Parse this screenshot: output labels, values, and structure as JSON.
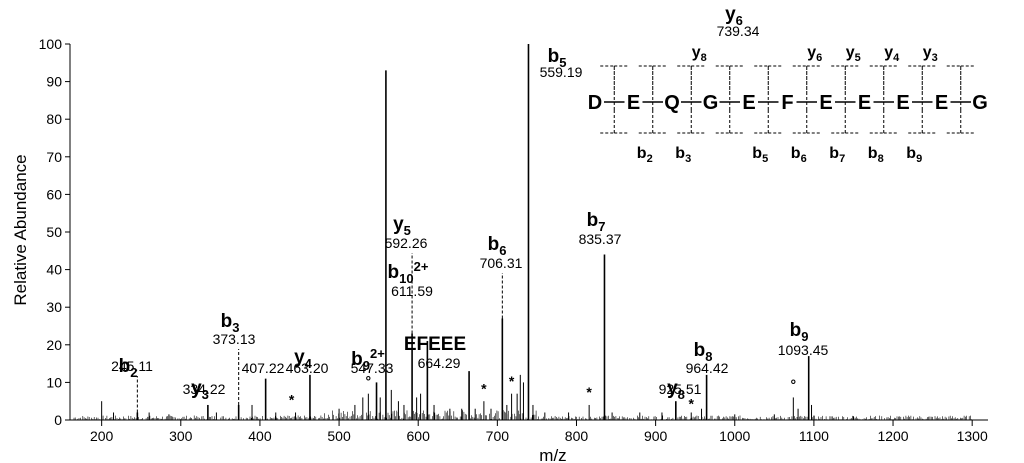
{
  "chart_data": {
    "type": "bar",
    "xlabel": "m/z",
    "ylabel": "Relative Abundance",
    "xlim": [
      160,
      1320
    ],
    "ylim": [
      0,
      100
    ],
    "x_ticks": [
      "200",
      "300",
      "400",
      "500",
      "600",
      "700",
      "800",
      "900",
      "1000",
      "1100",
      "1200",
      "1300"
    ],
    "y_ticks": [
      "0",
      "10",
      "20",
      "30",
      "40",
      "50",
      "60",
      "70",
      "80",
      "90",
      "100"
    ],
    "grid": false,
    "legend": "none",
    "peaks": [
      {
        "x": 739.34,
        "y": 100,
        "ion": "y",
        "sub": "6",
        "sup": "",
        "mz": "739.34",
        "leader": "solid"
      },
      {
        "x": 559.19,
        "y": 93,
        "ion": "b",
        "sub": "5",
        "sup": "",
        "mz": "559.19",
        "leader": "solid"
      },
      {
        "x": 835.37,
        "y": 44,
        "ion": "b",
        "sub": "7",
        "sup": "",
        "mz": "835.37",
        "leader": "solid"
      },
      {
        "x": 706.31,
        "y": 27,
        "ion": "b",
        "sub": "6",
        "sup": "",
        "mz": "706.31",
        "leader": "dashed"
      },
      {
        "x": 611.59,
        "y": 21,
        "ion": "b",
        "sub": "10",
        "sup": "2+",
        "mz": "611.59",
        "leader": "solid"
      },
      {
        "x": 592.26,
        "y": 23,
        "ion": "y",
        "sub": "5",
        "sup": "",
        "mz": "592.26",
        "leader": "dashed"
      },
      {
        "x": 1093.45,
        "y": 17,
        "ion": "b",
        "sub": "9",
        "sup": "",
        "mz": "1093.45",
        "leader": "solid"
      },
      {
        "x": 664.29,
        "y": 13,
        "ion": "EFEEE",
        "sub": "",
        "sup": "",
        "mz": "664.29",
        "leader": "solid"
      },
      {
        "x": 964.42,
        "y": 12,
        "ion": "b",
        "sub": "8",
        "sup": "",
        "mz": "964.42",
        "leader": "solid"
      },
      {
        "x": 463.2,
        "y": 12,
        "ion": "y",
        "sub": "4",
        "sup": "",
        "mz": "463.20",
        "leader": "solid"
      },
      {
        "x": 407.22,
        "y": 11,
        "ion": "",
        "sub": "",
        "sup": "",
        "mz": "407.22",
        "leader": "solid"
      },
      {
        "x": 547.33,
        "y": 10,
        "ion": "b",
        "sub": "9",
        "sup": "2+",
        "mz": "547.33",
        "leader": "solid"
      },
      {
        "x": 373.13,
        "y": 4,
        "ion": "b",
        "sub": "3",
        "sup": "",
        "mz": "373.13",
        "leader": "dashed"
      },
      {
        "x": 925.51,
        "y": 5,
        "ion": "y",
        "sub": "8",
        "sup": "",
        "mz": "925.51",
        "leader": "solid"
      },
      {
        "x": 334.22,
        "y": 4,
        "ion": "y",
        "sub": "3",
        "sup": "",
        "mz": "334.22",
        "leader": "solid"
      },
      {
        "x": 245.11,
        "y": 2,
        "ion": "b",
        "sub": "2",
        "sup": "",
        "mz": "245.11",
        "leader": "dashed"
      }
    ],
    "minor_peaks": [
      {
        "x": 200,
        "y": 5
      },
      {
        "x": 215,
        "y": 2
      },
      {
        "x": 260,
        "y": 2
      },
      {
        "x": 285,
        "y": 1.5
      },
      {
        "x": 345,
        "y": 2
      },
      {
        "x": 390,
        "y": 4
      },
      {
        "x": 420,
        "y": 2
      },
      {
        "x": 445,
        "y": 2
      },
      {
        "x": 500,
        "y": 3
      },
      {
        "x": 520,
        "y": 4
      },
      {
        "x": 530,
        "y": 6
      },
      {
        "x": 537,
        "y": 7
      },
      {
        "x": 552,
        "y": 6
      },
      {
        "x": 566,
        "y": 8
      },
      {
        "x": 575,
        "y": 5
      },
      {
        "x": 582,
        "y": 4
      },
      {
        "x": 598,
        "y": 6
      },
      {
        "x": 603,
        "y": 7
      },
      {
        "x": 620,
        "y": 4
      },
      {
        "x": 640,
        "y": 3
      },
      {
        "x": 655,
        "y": 3
      },
      {
        "x": 672,
        "y": 3
      },
      {
        "x": 683,
        "y": 5
      },
      {
        "x": 692,
        "y": 3
      },
      {
        "x": 712,
        "y": 4
      },
      {
        "x": 718,
        "y": 7
      },
      {
        "x": 725,
        "y": 7
      },
      {
        "x": 729,
        "y": 12
      },
      {
        "x": 733,
        "y": 10
      },
      {
        "x": 745,
        "y": 4
      },
      {
        "x": 760,
        "y": 2
      },
      {
        "x": 790,
        "y": 2
      },
      {
        "x": 816,
        "y": 4
      },
      {
        "x": 845,
        "y": 2
      },
      {
        "x": 880,
        "y": 2
      },
      {
        "x": 908,
        "y": 2
      },
      {
        "x": 945,
        "y": 2
      },
      {
        "x": 958,
        "y": 3
      },
      {
        "x": 1000,
        "y": 1.5
      },
      {
        "x": 1050,
        "y": 1.5
      },
      {
        "x": 1074,
        "y": 6
      },
      {
        "x": 1080,
        "y": 3
      },
      {
        "x": 1097,
        "y": 4
      },
      {
        "x": 1150,
        "y": 1
      }
    ],
    "markers": [
      {
        "x": 440,
        "y": 3,
        "symbol": "*"
      },
      {
        "x": 537,
        "y": 8,
        "symbol": "°"
      },
      {
        "x": 683,
        "y": 6,
        "symbol": "*"
      },
      {
        "x": 718,
        "y": 8,
        "symbol": "*"
      },
      {
        "x": 816,
        "y": 5,
        "symbol": "*"
      },
      {
        "x": 945,
        "y": 2,
        "symbol": "*"
      },
      {
        "x": 1074,
        "y": 7,
        "symbol": "°"
      }
    ]
  },
  "sequence": {
    "residues": [
      "D",
      "E",
      "Q",
      "G",
      "E",
      "F",
      "E",
      "E",
      "E",
      "E",
      "G"
    ],
    "y_labels": [
      {
        "after": 2,
        "sub": "8"
      },
      {
        "after": 5,
        "sub": "6"
      },
      {
        "after": 6,
        "sub": "5"
      },
      {
        "after": 7,
        "sub": "4"
      },
      {
        "after": 8,
        "sub": "3"
      }
    ],
    "b_labels": [
      {
        "after": 1,
        "sub": "2"
      },
      {
        "after": 2,
        "sub": "3"
      },
      {
        "after": 4,
        "sub": "5"
      },
      {
        "after": 5,
        "sub": "6"
      },
      {
        "after": 6,
        "sub": "7"
      },
      {
        "after": 7,
        "sub": "8"
      },
      {
        "after": 8,
        "sub": "9"
      }
    ]
  }
}
